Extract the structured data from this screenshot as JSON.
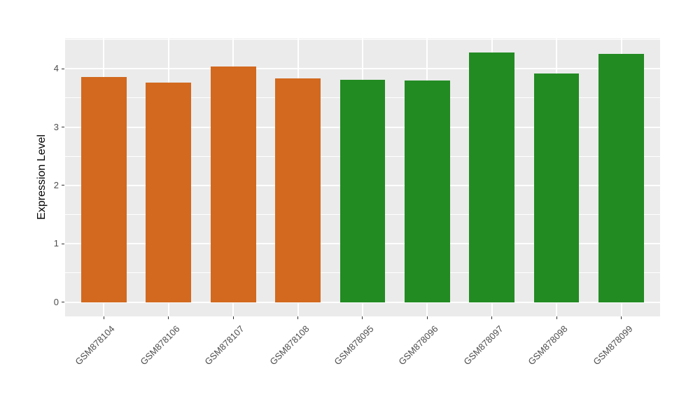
{
  "figure": {
    "background": "#ffffff",
    "panel_background": "#EBEBEB",
    "grid_color": "#ffffff",
    "axis_text_color": "#4D4D4D",
    "axis_title_color": "#000000"
  },
  "chart_data": {
    "type": "bar",
    "title": "",
    "xlabel": "",
    "ylabel": "Expression Level",
    "categories": [
      "GSM878104",
      "GSM878106",
      "GSM878107",
      "GSM878108",
      "GSM878095",
      "GSM878096",
      "GSM878097",
      "GSM878098",
      "GSM878099"
    ],
    "values": [
      3.86,
      3.76,
      4.04,
      3.83,
      3.81,
      3.8,
      4.28,
      3.92,
      4.26
    ],
    "bar_colors": [
      "#D2691E",
      "#D2691E",
      "#D2691E",
      "#D2691E",
      "#228B22",
      "#228B22",
      "#228B22",
      "#228B22",
      "#228B22"
    ],
    "groups": [
      {
        "name": "orange-group",
        "color": "#D2691E",
        "categories": [
          "GSM878104",
          "GSM878106",
          "GSM878107",
          "GSM878108"
        ]
      },
      {
        "name": "green-group",
        "color": "#228B22",
        "categories": [
          "GSM878095",
          "GSM878096",
          "GSM878097",
          "GSM878098",
          "GSM878099"
        ]
      }
    ],
    "y_ticks": [
      0,
      1,
      2,
      3,
      4
    ],
    "y_minor_ticks": [
      0.5,
      1.5,
      2.5,
      3.5,
      4.5
    ],
    "ylim": [
      -0.245,
      4.52
    ],
    "grid": true,
    "legend": false,
    "x_label_rotation_deg": 45
  }
}
